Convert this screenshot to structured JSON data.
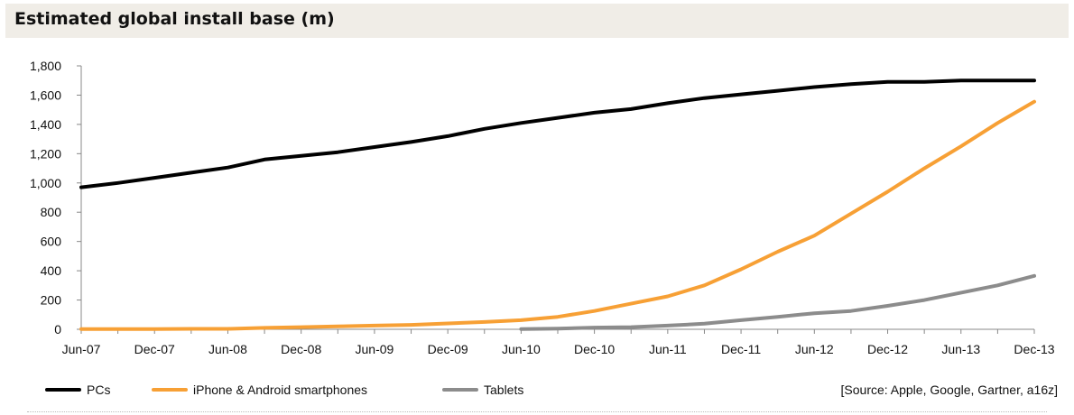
{
  "title": "Estimated global install base (m)",
  "source_note": "[Source:  Apple, Google, Gartner, a16z]",
  "colors": {
    "pcs": "#000000",
    "smartphones": "#f7a035",
    "tablets": "#8c8c8c"
  },
  "chart_data": {
    "type": "line",
    "title": "Estimated global install base (m)",
    "xlabel": "",
    "ylabel": "",
    "ylim": [
      0,
      1800
    ],
    "yticks": [
      0,
      200,
      400,
      600,
      800,
      1000,
      1200,
      1400,
      1600,
      1800
    ],
    "ytick_labels": [
      "0",
      "200",
      "400",
      "600",
      "800",
      "1,000",
      "1,200",
      "1,400",
      "1,600",
      "1,800"
    ],
    "x_tick_labels": [
      "Jun-07",
      "Dec-07",
      "Jun-08",
      "Dec-08",
      "Jun-09",
      "Dec-09",
      "Jun-10",
      "Dec-10",
      "Jun-11",
      "Dec-11",
      "Jun-12",
      "Dec-12",
      "Jun-13",
      "Dec-13"
    ],
    "x": [
      "Jun-07",
      "Sep-07",
      "Dec-07",
      "Mar-08",
      "Jun-08",
      "Sep-08",
      "Dec-08",
      "Mar-09",
      "Jun-09",
      "Sep-09",
      "Dec-09",
      "Mar-10",
      "Jun-10",
      "Sep-10",
      "Dec-10",
      "Mar-11",
      "Jun-11",
      "Sep-11",
      "Dec-11",
      "Mar-12",
      "Jun-12",
      "Sep-12",
      "Dec-12",
      "Mar-13",
      "Jun-13",
      "Sep-13",
      "Dec-13"
    ],
    "grid": false,
    "legend_position": "bottom",
    "series": [
      {
        "name": "PCs",
        "color": "#000000",
        "values": [
          970,
          1000,
          1035,
          1070,
          1105,
          1160,
          1185,
          1210,
          1245,
          1280,
          1320,
          1370,
          1410,
          1445,
          1480,
          1505,
          1545,
          1580,
          1605,
          1630,
          1655,
          1675,
          1690,
          1690,
          1700,
          1700,
          1700
        ]
      },
      {
        "name": "iPhone & Android smartphones",
        "color": "#f7a035",
        "values": [
          2,
          2,
          2,
          3,
          3,
          10,
          15,
          20,
          25,
          30,
          40,
          50,
          62,
          85,
          125,
          175,
          225,
          300,
          410,
          530,
          640,
          790,
          940,
          1100,
          1250,
          1410,
          1555
        ]
      },
      {
        "name": "Tablets",
        "color": "#8c8c8c",
        "start_index": 12,
        "values": [
          null,
          null,
          null,
          null,
          null,
          null,
          null,
          null,
          null,
          null,
          null,
          null,
          2,
          5,
          12,
          15,
          25,
          38,
          62,
          85,
          110,
          125,
          160,
          200,
          250,
          300,
          365
        ]
      }
    ]
  }
}
